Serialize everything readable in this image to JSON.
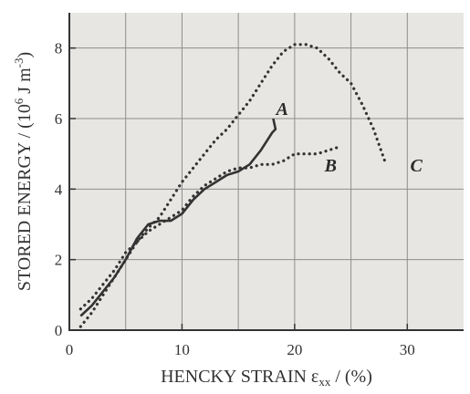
{
  "chart_data": {
    "type": "line",
    "xlabel": "HENCKY STRAIN ε",
    "xlabel_subscript": "xx",
    "xlabel_units": " / (%)",
    "ylabel": "STORED ENERGY / (10",
    "ylabel_superscript": "6",
    "ylabel_units": " J m",
    "ylabel_units_superscript": "-3",
    "ylabel_close": ")",
    "xlim": [
      0,
      35
    ],
    "ylim": [
      0,
      9
    ],
    "x_ticks": [
      0,
      10,
      20,
      30
    ],
    "y_ticks": [
      0,
      2,
      4,
      6,
      8
    ],
    "x_gridlines": [
      0,
      5,
      10,
      15,
      20,
      25,
      30
    ],
    "y_gridlines": [
      2,
      4,
      6,
      8
    ],
    "grid": true,
    "background": "#e8e6e3",
    "line_color": "#333333",
    "series": [
      {
        "name": "A",
        "style": "solid",
        "x": [
          1.0,
          2.0,
          3.0,
          4.0,
          5.0,
          6.0,
          7.0,
          8.0,
          9.0,
          10.0,
          11.0,
          12.0,
          13.0,
          14.0,
          15.0,
          16.0,
          17.0,
          18.0,
          18.3,
          18.1
        ],
        "y": [
          0.4,
          0.7,
          1.1,
          1.5,
          2.0,
          2.6,
          3.0,
          3.1,
          3.1,
          3.3,
          3.7,
          4.0,
          4.2,
          4.4,
          4.5,
          4.7,
          5.1,
          5.6,
          5.7,
          6.0
        ]
      },
      {
        "name": "B",
        "style": "dotted",
        "x": [
          1.0,
          2.0,
          3.0,
          4.0,
          5.0,
          6.0,
          7.0,
          8.0,
          9.0,
          10.0,
          11.0,
          12.0,
          13.0,
          14.0,
          15.0,
          16.0,
          17.0,
          18.0,
          19.0,
          20.0,
          21.0,
          22.0,
          23.0,
          24.0
        ],
        "y": [
          0.6,
          0.9,
          1.3,
          1.7,
          2.2,
          2.5,
          2.8,
          3.0,
          3.2,
          3.4,
          3.8,
          4.1,
          4.3,
          4.5,
          4.6,
          4.6,
          4.7,
          4.7,
          4.8,
          5.0,
          5.0,
          5.0,
          5.1,
          5.2
        ]
      },
      {
        "name": "C",
        "style": "dotted",
        "x": [
          1.0,
          2.0,
          3.0,
          4.0,
          5.0,
          6.0,
          7.0,
          8.0,
          9.0,
          10.0,
          11.0,
          12.0,
          13.0,
          14.0,
          15.0,
          16.0,
          17.0,
          18.0,
          19.0,
          20.0,
          21.0,
          22.0,
          23.0,
          24.0,
          25.0,
          26.0,
          27.0,
          28.0
        ],
        "y": [
          0.1,
          0.5,
          1.0,
          1.5,
          2.0,
          2.5,
          2.9,
          3.2,
          3.7,
          4.2,
          4.6,
          5.0,
          5.4,
          5.7,
          6.1,
          6.5,
          7.0,
          7.5,
          7.9,
          8.1,
          8.1,
          8.0,
          7.7,
          7.3,
          7.0,
          6.4,
          5.7,
          4.8
        ]
      }
    ],
    "annotations": [
      {
        "text": "A",
        "series": "A",
        "x": 18.9,
        "y": 6.1
      },
      {
        "text": "B",
        "series": "B",
        "x": 23.2,
        "y": 4.5
      },
      {
        "text": "C",
        "series": "C",
        "x": 30.8,
        "y": 4.5
      }
    ]
  }
}
